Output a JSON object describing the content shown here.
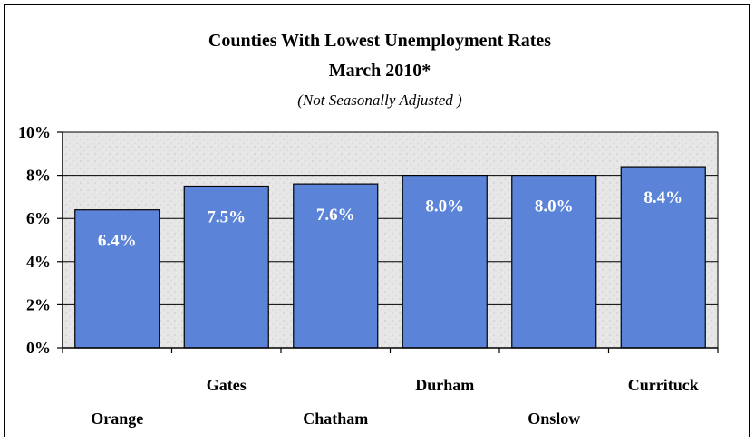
{
  "chart_data": {
    "type": "bar",
    "title": "Counties With Lowest Unemployment Rates",
    "subtitle": "March 2010*",
    "note": "(Not Seasonally Adjusted )",
    "categories": [
      "Orange",
      "Gates",
      "Chatham",
      "Durham",
      "Onslow",
      "Currituck"
    ],
    "values": [
      6.4,
      7.5,
      7.6,
      8.0,
      8.0,
      8.4
    ],
    "value_labels": [
      "6.4%",
      "7.5%",
      "7.6%",
      "8.0%",
      "8.0%",
      "8.4%"
    ],
    "ylim": [
      0,
      10
    ],
    "yticks": [
      "0%",
      "2%",
      "4%",
      "6%",
      "8%",
      "10%"
    ],
    "ytick_values": [
      0,
      2,
      4,
      6,
      8,
      10
    ],
    "grid": true,
    "colors": {
      "bar": "#5B84D9",
      "bar_stroke": "#000000",
      "plot_bg": "#E3E3E3"
    }
  }
}
